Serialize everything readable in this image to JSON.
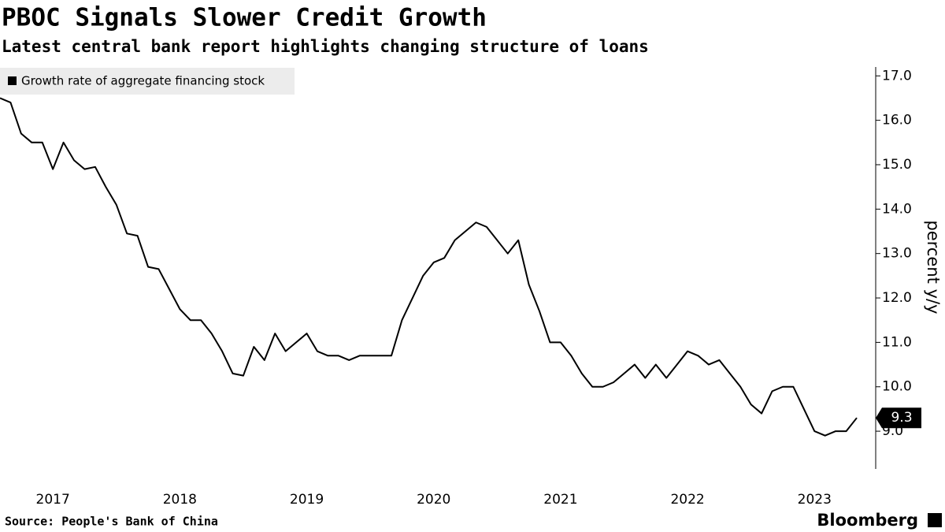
{
  "chart_data": {
    "type": "line",
    "title": "PBOC Signals Slower Credit Growth",
    "subtitle": "Latest central bank report highlights changing structure of loans",
    "y_label": "percent y/y",
    "source": "Source:  People's Bank of China",
    "brand": "Bloomberg",
    "categories": [
      null,
      null,
      null,
      null,
      null,
      "2017",
      null,
      null,
      null,
      null,
      null,
      null,
      null,
      null,
      null,
      null,
      null,
      "2018",
      null,
      null,
      null,
      null,
      null,
      null,
      null,
      null,
      null,
      null,
      null,
      "2019",
      null,
      null,
      null,
      null,
      null,
      null,
      null,
      null,
      null,
      null,
      null,
      "2020",
      null,
      null,
      null,
      null,
      null,
      null,
      null,
      null,
      null,
      null,
      null,
      "2021",
      null,
      null,
      null,
      null,
      null,
      null,
      null,
      null,
      null,
      null,
      null,
      "2022",
      null,
      null,
      null,
      null,
      null,
      null,
      null,
      null,
      null,
      null,
      null,
      "2023",
      null,
      null,
      null,
      null
    ],
    "series": [
      {
        "name": "Growth rate of aggregate financing stock",
        "color": "#000000",
        "values": [
          16.5,
          16.4,
          15.7,
          15.5,
          15.5,
          14.9,
          15.5,
          15.1,
          14.9,
          14.95,
          14.5,
          14.1,
          13.45,
          13.4,
          12.7,
          12.65,
          12.2,
          11.75,
          11.5,
          11.5,
          11.2,
          10.8,
          10.3,
          10.25,
          10.9,
          10.6,
          11.2,
          10.8,
          11.0,
          11.2,
          10.8,
          10.7,
          10.7,
          10.6,
          10.7,
          10.7,
          10.7,
          10.7,
          11.5,
          12.0,
          12.5,
          12.8,
          12.9,
          13.3,
          13.5,
          13.7,
          13.6,
          13.3,
          13.0,
          13.3,
          12.3,
          11.7,
          11.0,
          11.0,
          10.7,
          10.3,
          10.0,
          10.0,
          10.1,
          10.3,
          10.5,
          10.2,
          10.5,
          10.2,
          10.5,
          10.8,
          10.7,
          10.5,
          10.6,
          10.3,
          10.0,
          9.6,
          9.4,
          9.9,
          10.0,
          10.0,
          9.5,
          9.0,
          8.9,
          9.0,
          9.0,
          9.3
        ]
      }
    ],
    "ylim": [
      8.15,
      17.2
    ],
    "yticks": [
      {
        "value": 9,
        "label": "9.0"
      },
      {
        "value": 10,
        "label": "10.0"
      },
      {
        "value": 11,
        "label": "11.0"
      },
      {
        "value": 12,
        "label": "12.0"
      },
      {
        "value": 13,
        "label": "13.0"
      },
      {
        "value": 14,
        "label": "14.0"
      },
      {
        "value": 15,
        "label": "15.0"
      },
      {
        "value": 16,
        "label": "16.0"
      },
      {
        "value": 17,
        "label": "17.0"
      }
    ],
    "grid": false
  }
}
